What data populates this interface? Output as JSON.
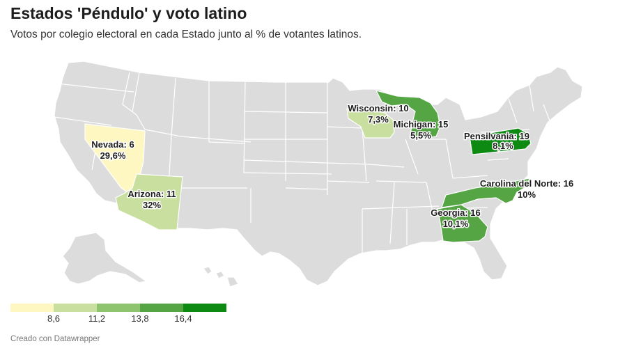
{
  "title": "Estados 'Péndulo' y voto latino",
  "subtitle": "Votos por colegio electoral en cada Estado junto al % de votantes latinos.",
  "credit": "Creado con Datawrapper",
  "colors": {
    "base": "#dcdcdc",
    "scale": [
      "#fff7c2",
      "#c9df9f",
      "#8fc46f",
      "#56a545",
      "#0c8a12"
    ]
  },
  "legend": {
    "ticks": [
      "8,6",
      "11,2",
      "13,8",
      "16,4"
    ]
  },
  "swing_states": [
    {
      "id": "nevada",
      "name": "Nevada",
      "votes": 6,
      "pct_text": "29,6%",
      "color": "#fff7c2"
    },
    {
      "id": "arizona",
      "name": "Arizona",
      "votes": 11,
      "pct_text": "32%",
      "color": "#c9df9f"
    },
    {
      "id": "wisconsin",
      "name": "Wisconsin",
      "votes": 10,
      "pct_text": "7,3%",
      "color": "#c9df9f"
    },
    {
      "id": "michigan",
      "name": "Michigan",
      "votes": 15,
      "pct_text": "5,5%",
      "color": "#56a545"
    },
    {
      "id": "pennsylvania",
      "name": "Pensilvania",
      "votes": 19,
      "pct_text": "8,1%",
      "color": "#0c8a12"
    },
    {
      "id": "north-carolina",
      "name": "Carolina del Norte",
      "votes": 16,
      "pct_text": "10%",
      "color": "#56a545"
    },
    {
      "id": "georgia",
      "name": "Georgia",
      "votes": 16,
      "pct_text": "10,1%",
      "color": "#56a545"
    }
  ],
  "labels": {
    "nevada": {
      "line1": "Nevada: 6",
      "line2": "29,6%"
    },
    "arizona": {
      "line1": "Arizona: 11",
      "line2": "32%"
    },
    "wisconsin": {
      "line1": "Wisconsin: 10",
      "line2": "7,3%"
    },
    "michigan": {
      "line1": "Michigan: 15",
      "line2": "5,5%"
    },
    "pennsylvania": {
      "line1": "Pensilvania: 19",
      "line2": "8,1%"
    },
    "north_carolina": {
      "line1": "Carolina del Norte: 16",
      "line2": "10%"
    },
    "georgia": {
      "line1": "Georgia: 16",
      "line2": "10,1%"
    }
  }
}
